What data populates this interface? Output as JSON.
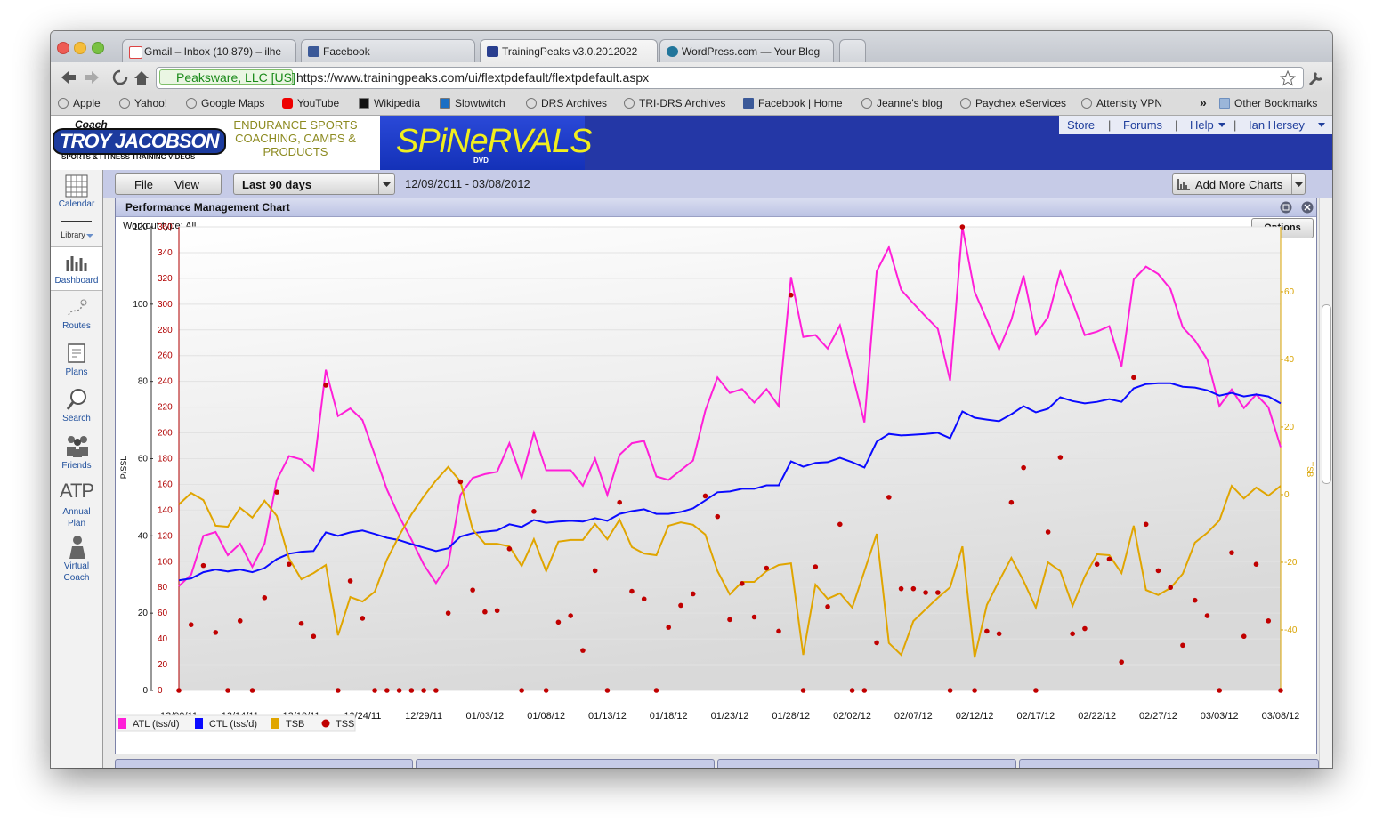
{
  "browser": {
    "tabs": [
      "Gmail – Inbox (10,879) – ilhe",
      "Facebook",
      "TrainingPeaks v3.0.2012022",
      "WordPress.com — Your Blog"
    ],
    "identity": "Peaksware, LLC [US]",
    "url": "https://www.trainingpeaks.com/ui/flextpdefault/flextpdefault.aspx",
    "bookmarks": [
      "Apple",
      "Yahoo!",
      "Google Maps",
      "YouTube",
      "Wikipedia",
      "Slowtwitch",
      "DRS Archives",
      "TRI-DRS Archives",
      "Facebook | Home",
      "Jeanne's blog",
      "Paychex eServices",
      "Attensity VPN"
    ],
    "bookmarks_overflow": "»",
    "other_bookmarks": "Other Bookmarks"
  },
  "site": {
    "logo_coach": "Coach",
    "logo_name": "TROY JACOBSON",
    "logo_tagline": "SPORTS & FITNESS TRAINING VIDEOS",
    "slogan": "ENDURANCE SPORTS COACHING, CAMPS & PRODUCTS",
    "brand": "SPiNeRVALS",
    "brand_sub": "DVD",
    "nav": [
      "Store",
      "Forums",
      "Help",
      "Ian Hersey"
    ]
  },
  "sidebar": [
    "Calendar",
    "Library",
    "Dashboard",
    "Routes",
    "Plans",
    "Search",
    "Friends",
    "Annual Plan",
    "Virtual Coach"
  ],
  "sidebar_atp": "ATP",
  "toolbar": {
    "menu": [
      "File",
      "View"
    ],
    "range": "Last 90 days",
    "dates": "12/09/2011 - 03/08/2012",
    "add_charts": "Add More Charts"
  },
  "panel": {
    "title": "Performance Management Chart",
    "filter": "Workout type: All",
    "options": "Options"
  },
  "chart_data": {
    "type": "line",
    "categories": [
      "12/09/11",
      null,
      null,
      null,
      null,
      "12/14/11",
      null,
      null,
      null,
      null,
      "12/19/11",
      null,
      null,
      null,
      null,
      "12/24/11",
      null,
      null,
      null,
      null,
      "12/29/11",
      null,
      null,
      null,
      null,
      "01/03/12",
      null,
      null,
      null,
      null,
      "01/08/12",
      null,
      null,
      null,
      null,
      "01/13/12",
      null,
      null,
      null,
      null,
      "01/18/12",
      null,
      null,
      null,
      null,
      "01/23/12",
      null,
      null,
      null,
      null,
      "01/28/12",
      null,
      null,
      null,
      null,
      "02/02/12",
      null,
      null,
      null,
      null,
      "02/07/12",
      null,
      null,
      null,
      null,
      "02/12/12",
      null,
      null,
      null,
      null,
      "02/17/12",
      null,
      null,
      null,
      null,
      "02/22/12",
      null,
      null,
      null,
      null,
      "02/27/12",
      null,
      null,
      null,
      null,
      "03/03/12",
      null,
      null,
      null,
      null,
      "03/08/12"
    ],
    "ylabel": "P/SSL",
    "y3label": "TSB",
    "ylim": [
      0,
      120
    ],
    "yticks": [
      0,
      20,
      40,
      60,
      80,
      100,
      120
    ],
    "y2lim": [
      0,
      360
    ],
    "y2ticks": [
      0,
      20,
      40,
      60,
      80,
      100,
      120,
      140,
      160,
      180,
      200,
      220,
      240,
      260,
      280,
      300,
      320,
      340,
      360
    ],
    "y3lim": [
      -57.9,
      79.2
    ],
    "y3ticks": [
      -40,
      -20,
      0,
      20,
      40,
      60
    ],
    "y2color": "#b00000",
    "y3color": "#d9a300",
    "grid": true,
    "series": [
      {
        "name": "ATL (tss/d)",
        "color": "#ff1fd8",
        "axis": "y",
        "values": [
          27,
          30,
          40,
          41,
          35,
          38,
          32,
          38,
          54.5,
          60.7,
          59.8,
          57,
          83,
          71,
          73,
          70,
          61,
          52,
          45,
          39,
          32.6,
          27.8,
          32.6,
          50.6,
          55,
          56,
          56.6,
          64,
          55,
          66.7,
          57,
          57,
          57,
          53,
          60,
          50.6,
          61,
          64,
          64.6,
          55.4,
          54.5,
          57,
          59.5,
          72.4,
          81,
          77,
          78,
          74.5,
          78,
          73.6,
          107,
          91.5,
          92,
          88.5,
          94.5,
          82,
          69.4,
          108.5,
          114.7,
          103.7,
          100.2,
          96.8,
          93.6,
          80.2,
          120,
          103.2,
          95.9,
          88.3,
          95.9,
          107.4,
          92.2,
          96.6,
          108.5,
          100.5,
          92,
          92.9,
          94.3,
          83.9,
          106.4,
          109.7,
          107.8,
          103.9,
          94,
          90.6,
          85.7,
          73.6,
          77.9,
          73.1,
          76.6,
          73.3,
          63
        ]
      },
      {
        "name": "CTL (tss/d)",
        "color": "#0a0aff",
        "axis": "y",
        "values": [
          28.5,
          29,
          30.6,
          31.3,
          30.8,
          31.3,
          30.6,
          31.7,
          34,
          35.4,
          35.9,
          36.1,
          40.9,
          40,
          40.9,
          41.4,
          40.5,
          39.5,
          38.9,
          37.9,
          37,
          36.1,
          36.8,
          39.8,
          40.7,
          41.1,
          41.4,
          43,
          42.3,
          44.1,
          43.4,
          43.7,
          43.9,
          43.7,
          44.6,
          43.9,
          45.7,
          46.4,
          46.9,
          45.7,
          45.7,
          46.2,
          47.1,
          49.2,
          51.3,
          51.5,
          52.2,
          52.2,
          53.1,
          53.1,
          59.3,
          57.9,
          58.9,
          59.1,
          60.2,
          59.1,
          57.7,
          64.4,
          66.4,
          66,
          66.2,
          66.4,
          66.7,
          65.3,
          72.2,
          70.6,
          70.1,
          69.7,
          71.5,
          73.6,
          72,
          72.9,
          75.9,
          74.9,
          74.3,
          74.7,
          75.4,
          74.7,
          78.2,
          79.3,
          79.5,
          79.5,
          78.6,
          78.4,
          77.7,
          76.3,
          77,
          76.1,
          76.6,
          76.1,
          74.3
        ]
      },
      {
        "name": "TSB",
        "color": "#e0a500",
        "axis": "y3",
        "values": [
          -2.9,
          0.5,
          -1.6,
          -9.2,
          -9.5,
          -3.9,
          -6.8,
          -1.8,
          -6.3,
          -18.9,
          -25,
          -23.2,
          -20.8,
          -41.6,
          -30.3,
          -31.6,
          -28.7,
          -19.2,
          -12.1,
          -5.8,
          -0.5,
          4.2,
          8.2,
          3.9,
          -10.3,
          -14.5,
          -14.5,
          -15.3,
          -21.1,
          -13.2,
          -22.6,
          -13.9,
          -13.4,
          -13.4,
          -8.7,
          -13.2,
          -7.4,
          -15.5,
          -17.4,
          -17.9,
          -9.2,
          -8.2,
          -8.9,
          -11.8,
          -22.6,
          -29.5,
          -25.8,
          -25.8,
          -22.6,
          -20.8,
          -20.3,
          -47.4,
          -26.6,
          -30.8,
          -29.2,
          -33.4,
          -22.6,
          -11.6,
          -43.9,
          -47.4,
          -37.4,
          -33.9,
          -30.5,
          -27.4,
          -15.3,
          -48.2,
          -32.6,
          -25.5,
          -18.7,
          -25.5,
          -33.4,
          -20,
          -22.6,
          -32.9,
          -24.2,
          -17.6,
          -17.9,
          -23.2,
          -9.2,
          -28.2,
          -29.7,
          -27.6,
          -23.4,
          -14.2,
          -11.3,
          -7.6,
          2.6,
          -1.1,
          2.1,
          -0.3,
          2.6
        ]
      },
      {
        "name": "TSS",
        "color": "#c00000",
        "axis": "y2",
        "type": "scatter",
        "values": [
          0,
          51,
          97,
          45,
          0,
          54,
          0,
          72,
          154,
          98,
          52,
          42,
          237,
          0,
          85,
          56,
          0,
          0,
          0,
          0,
          0,
          0,
          60,
          162,
          78,
          61,
          62,
          110,
          0,
          139,
          0,
          53,
          58,
          31,
          93,
          0,
          146,
          77,
          71,
          0,
          49,
          66,
          75,
          151,
          135,
          55,
          83,
          57,
          95,
          46,
          307,
          0,
          96,
          65,
          129,
          0,
          0,
          37,
          150,
          79,
          79,
          76,
          76,
          0,
          360,
          0,
          46,
          44,
          146,
          173,
          0,
          123,
          181,
          44,
          48,
          98,
          102,
          22,
          243,
          129,
          93,
          80,
          35,
          70,
          58,
          0,
          107,
          42,
          98,
          54,
          0
        ]
      }
    ]
  }
}
